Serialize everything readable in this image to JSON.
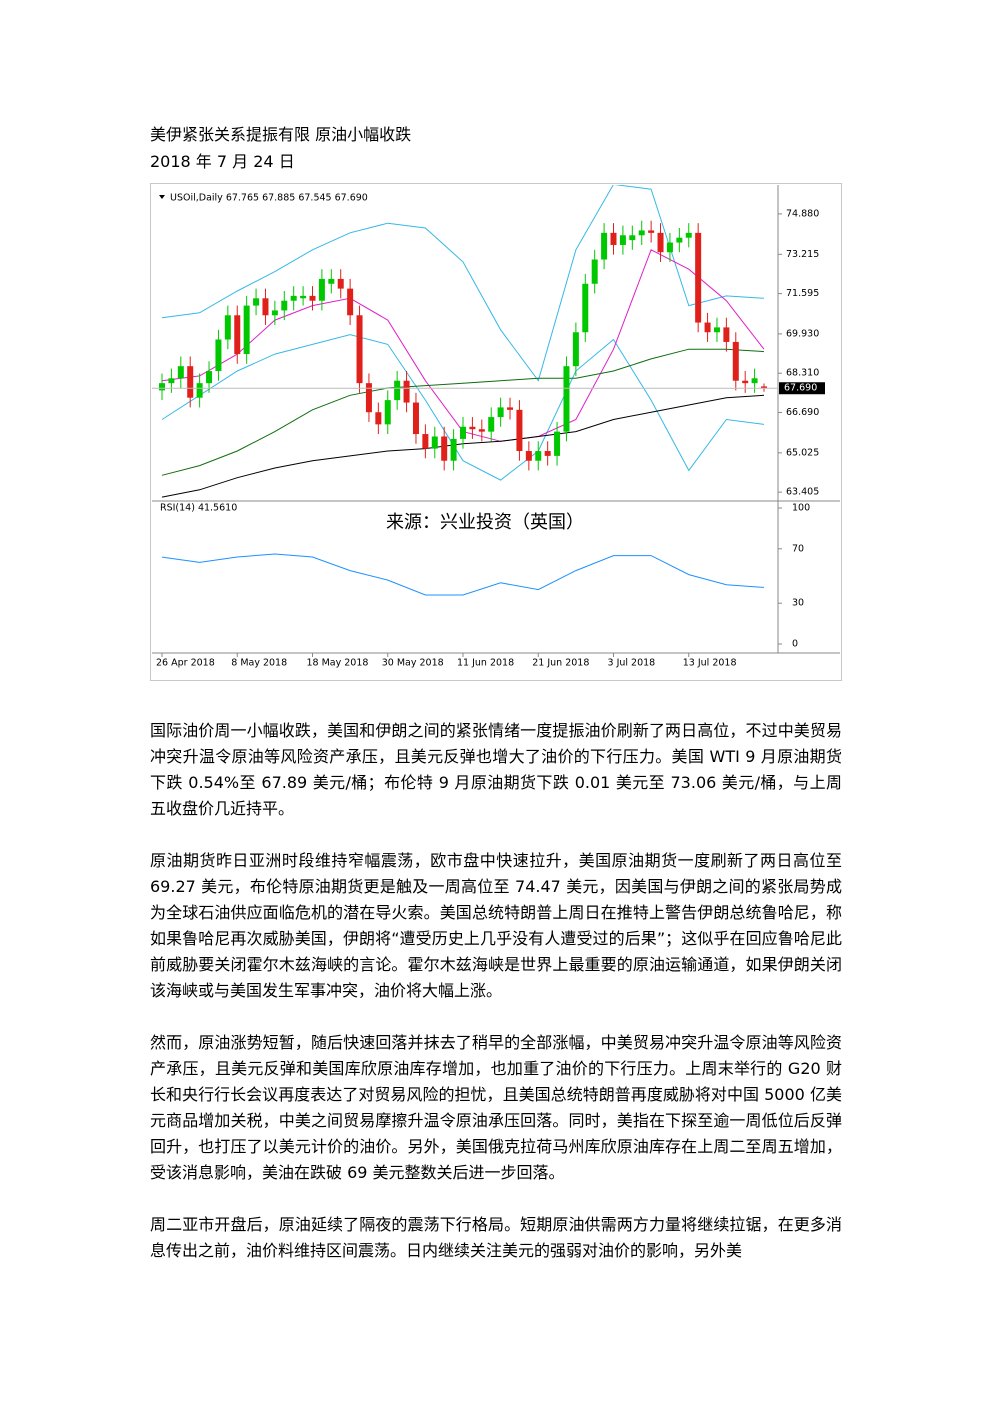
{
  "document": {
    "title": "美伊紧张关系提振有限 原油小幅收跌",
    "date": "2018 年 7 月 24 日",
    "paragraphs": [
      "国际油价周一小幅收跌，美国和伊朗之间的紧张情绪一度提振油价刷新了两日高位，不过中美贸易冲突升温令原油等风险资产承压，且美元反弹也增大了油价的下行压力。美国 WTI 9 月原油期货下跌 0.54%至 67.89 美元/桶；布伦特 9 月原油期货下跌 0.01 美元至 73.06 美元/桶，与上周五收盘价几近持平。",
      "原油期货昨日亚洲时段维持窄幅震荡，欧市盘中快速拉升，美国原油期货一度刷新了两日高位至 69.27 美元，布伦特原油期货更是触及一周高位至 74.47 美元，因美国与伊朗之间的紧张局势成为全球石油供应面临危机的潜在导火索。美国总统特朗普上周日在推特上警告伊朗总统鲁哈尼，称如果鲁哈尼再次威胁美国，伊朗将“遭受历史上几乎没有人遭受过的后果”；这似乎在回应鲁哈尼此前威胁要关闭霍尔木兹海峡的言论。霍尔木兹海峡是世界上最重要的原油运输通道，如果伊朗关闭该海峡或与美国发生军事冲突，油价将大幅上涨。",
      "然而，原油涨势短暂，随后快速回落并抹去了稍早的全部涨幅，中美贸易冲突升温令原油等风险资产承压，且美元反弹和美国库欣原油库存增加，也加重了油价的下行压力。上周末举行的 G20 财长和央行行长会议再度表达了对贸易风险的担忧，且美国总统特朗普再度威胁将对中国 5000 亿美元商品增加关税，中美之间贸易摩擦升温令原油承压回落。同时，美指在下探至逾一周低位后反弹回升，也打压了以美元计价的油价。另外，美国俄克拉荷马州库欣原油库存在上周二至周五增加，受该消息影响，美油在跌破 69 美元整数关后进一步回落。",
      "周二亚市开盘后，原油延续了隔夜的震荡下行格局。短期原油供需两方力量将继续拉锯，在更多消息传出之前，油价料维持区间震荡。日内继续关注美元的强弱对油价的影响，另外美"
    ]
  },
  "chart_data": {
    "type": "candlestick",
    "header": "USOil,Daily 67.765 67.885 67.545 67.690",
    "watermark": "来源：兴业投资（英国）",
    "up_color": "#00c800",
    "down_color": "#e0201b",
    "ylim": [
      63.08,
      75.95
    ],
    "yticks": [
      {
        "value": 74.88,
        "label": "74.880"
      },
      {
        "value": 73.215,
        "label": "73.215"
      },
      {
        "value": 71.595,
        "label": "71.595"
      },
      {
        "value": 69.93,
        "label": "69.930"
      },
      {
        "value": 68.31,
        "label": "68.310"
      },
      {
        "value": 66.69,
        "label": "66.690"
      },
      {
        "value": 65.025,
        "label": "65.025"
      },
      {
        "value": 63.405,
        "label": "63.405"
      }
    ],
    "current_price": {
      "value": 67.69,
      "label": "67.690"
    },
    "xticks": [
      {
        "value": 0,
        "label": "26 Apr 2018"
      },
      {
        "value": 8,
        "label": "8 May 2018"
      },
      {
        "value": 16,
        "label": "18 May 2018"
      },
      {
        "value": 24,
        "label": "30 May 2018"
      },
      {
        "value": 32,
        "label": "11 Jun 2018"
      },
      {
        "value": 40,
        "label": "21 Jun 2018"
      },
      {
        "value": 48,
        "label": "3 Jul 2018"
      },
      {
        "value": 56,
        "label": "13 Jul 2018"
      }
    ],
    "candles": [
      [
        67.6,
        68.3,
        67.2,
        67.9
      ],
      [
        67.9,
        68.5,
        67.5,
        68.1
      ],
      [
        68.1,
        69.0,
        67.7,
        68.6
      ],
      [
        68.6,
        69.0,
        66.9,
        67.3
      ],
      [
        67.3,
        68.3,
        66.9,
        67.9
      ],
      [
        67.9,
        68.8,
        67.5,
        68.4
      ],
      [
        68.4,
        70.1,
        68.0,
        69.7
      ],
      [
        69.7,
        71.1,
        69.3,
        70.7
      ],
      [
        70.7,
        71.1,
        68.7,
        69.1
      ],
      [
        69.1,
        71.5,
        68.7,
        71.1
      ],
      [
        71.1,
        71.8,
        70.7,
        71.4
      ],
      [
        71.4,
        71.8,
        70.3,
        70.7
      ],
      [
        70.7,
        71.3,
        70.3,
        70.9
      ],
      [
        70.9,
        71.7,
        70.5,
        71.3
      ],
      [
        71.3,
        71.9,
        70.9,
        71.5
      ],
      [
        71.4,
        71.9,
        71.1,
        71.5
      ],
      [
        71.5,
        71.9,
        70.9,
        71.3
      ],
      [
        71.3,
        72.6,
        70.9,
        72.2
      ],
      [
        72.0,
        72.6,
        71.6,
        72.2
      ],
      [
        72.2,
        72.6,
        71.4,
        71.8
      ],
      [
        71.8,
        72.2,
        70.3,
        70.7
      ],
      [
        70.7,
        71.1,
        67.5,
        67.9
      ],
      [
        67.9,
        68.3,
        66.3,
        66.7
      ],
      [
        66.7,
        67.1,
        65.8,
        66.2
      ],
      [
        66.2,
        67.6,
        65.8,
        67.2
      ],
      [
        67.2,
        68.4,
        66.8,
        68.0
      ],
      [
        68.0,
        68.4,
        66.7,
        67.1
      ],
      [
        67.1,
        67.5,
        65.4,
        65.8
      ],
      [
        65.8,
        66.2,
        64.8,
        65.2
      ],
      [
        65.2,
        66.1,
        64.8,
        65.7
      ],
      [
        65.7,
        66.1,
        64.3,
        64.7
      ],
      [
        64.7,
        66.0,
        64.3,
        65.6
      ],
      [
        65.6,
        66.5,
        65.2,
        66.1
      ],
      [
        66.1,
        66.5,
        65.6,
        66.0
      ],
      [
        66.0,
        66.4,
        65.5,
        65.9
      ],
      [
        65.9,
        66.9,
        65.5,
        66.5
      ],
      [
        66.5,
        67.3,
        66.1,
        66.9
      ],
      [
        66.9,
        67.3,
        66.4,
        66.8
      ],
      [
        66.8,
        67.2,
        64.7,
        65.1
      ],
      [
        65.1,
        65.5,
        64.3,
        64.7
      ],
      [
        64.7,
        65.5,
        64.3,
        65.1
      ],
      [
        65.1,
        65.5,
        64.5,
        64.9
      ],
      [
        64.9,
        66.3,
        64.5,
        65.9
      ],
      [
        65.9,
        69.0,
        65.5,
        68.6
      ],
      [
        68.6,
        70.4,
        68.2,
        70.0
      ],
      [
        70.0,
        72.4,
        69.6,
        72.0
      ],
      [
        72.0,
        73.4,
        71.6,
        73.0
      ],
      [
        73.0,
        74.5,
        72.6,
        74.1
      ],
      [
        74.1,
        74.5,
        73.2,
        73.6
      ],
      [
        73.6,
        74.4,
        73.2,
        74.0
      ],
      [
        73.8,
        74.4,
        73.4,
        74.0
      ],
      [
        74.0,
        74.6,
        73.6,
        74.2
      ],
      [
        74.2,
        74.6,
        73.7,
        74.1
      ],
      [
        74.1,
        74.5,
        72.9,
        73.3
      ],
      [
        73.3,
        74.1,
        72.9,
        73.7
      ],
      [
        73.7,
        74.3,
        73.3,
        73.9
      ],
      [
        73.9,
        74.5,
        73.5,
        74.1
      ],
      [
        74.1,
        74.5,
        70.0,
        70.4
      ],
      [
        70.4,
        70.8,
        69.6,
        70.0
      ],
      [
        70.0,
        70.6,
        69.6,
        70.2
      ],
      [
        70.2,
        70.6,
        69.2,
        69.6
      ],
      [
        69.6,
        70.0,
        67.6,
        68.0
      ],
      [
        68.0,
        68.4,
        67.5,
        67.9
      ],
      [
        67.9,
        68.5,
        67.5,
        68.1
      ],
      [
        67.765,
        67.885,
        67.545,
        67.69
      ]
    ],
    "overlay_x": [
      0,
      4,
      8,
      12,
      16,
      20,
      24,
      28,
      32,
      36,
      40,
      44,
      48,
      52,
      56,
      60,
      64
    ],
    "overlays": [
      {
        "color": "#35b8e8",
        "values": [
          70.6,
          70.8,
          71.7,
          72.5,
          73.4,
          74.1,
          74.5,
          74.3,
          72.9,
          70.1,
          68.0,
          73.4,
          76.1,
          75.9,
          71.1,
          71.5,
          71.4
        ]
      },
      {
        "color": "#35b8e8",
        "values": [
          66.4,
          67.4,
          68.4,
          69.1,
          69.5,
          69.9,
          69.5,
          67.2,
          64.7,
          63.9,
          65.1,
          68.4,
          69.7,
          67.2,
          64.3,
          66.4,
          66.2
        ]
      },
      {
        "color": "#e01ec8",
        "values": [
          68.0,
          68.2,
          69.1,
          70.5,
          71.1,
          71.4,
          70.5,
          68.0,
          65.9,
          65.5,
          65.7,
          66.4,
          69.3,
          73.4,
          72.6,
          71.3,
          69.3
        ]
      },
      {
        "color": "#0f6e0f",
        "values": [
          64.1,
          64.5,
          65.1,
          65.9,
          66.8,
          67.4,
          67.7,
          67.8,
          67.9,
          68.0,
          68.1,
          68.1,
          68.4,
          68.9,
          69.3,
          69.3,
          69.2
        ]
      },
      {
        "color": "#000000",
        "values": [
          63.2,
          63.5,
          64.0,
          64.4,
          64.7,
          64.9,
          65.1,
          65.2,
          65.4,
          65.5,
          65.7,
          65.9,
          66.4,
          66.7,
          67.0,
          67.3,
          67.4
        ]
      }
    ],
    "rsi": {
      "label": "RSI(14) 41.5610",
      "color": "#1e90ff",
      "ylim": [
        0,
        100
      ],
      "yticks": [
        100,
        70,
        30,
        0
      ],
      "values": [
        63.9,
        60,
        64,
        66.2,
        64,
        54,
        47,
        36,
        36,
        45,
        40,
        54,
        65,
        65,
        51,
        43.6,
        41.6
      ]
    }
  }
}
